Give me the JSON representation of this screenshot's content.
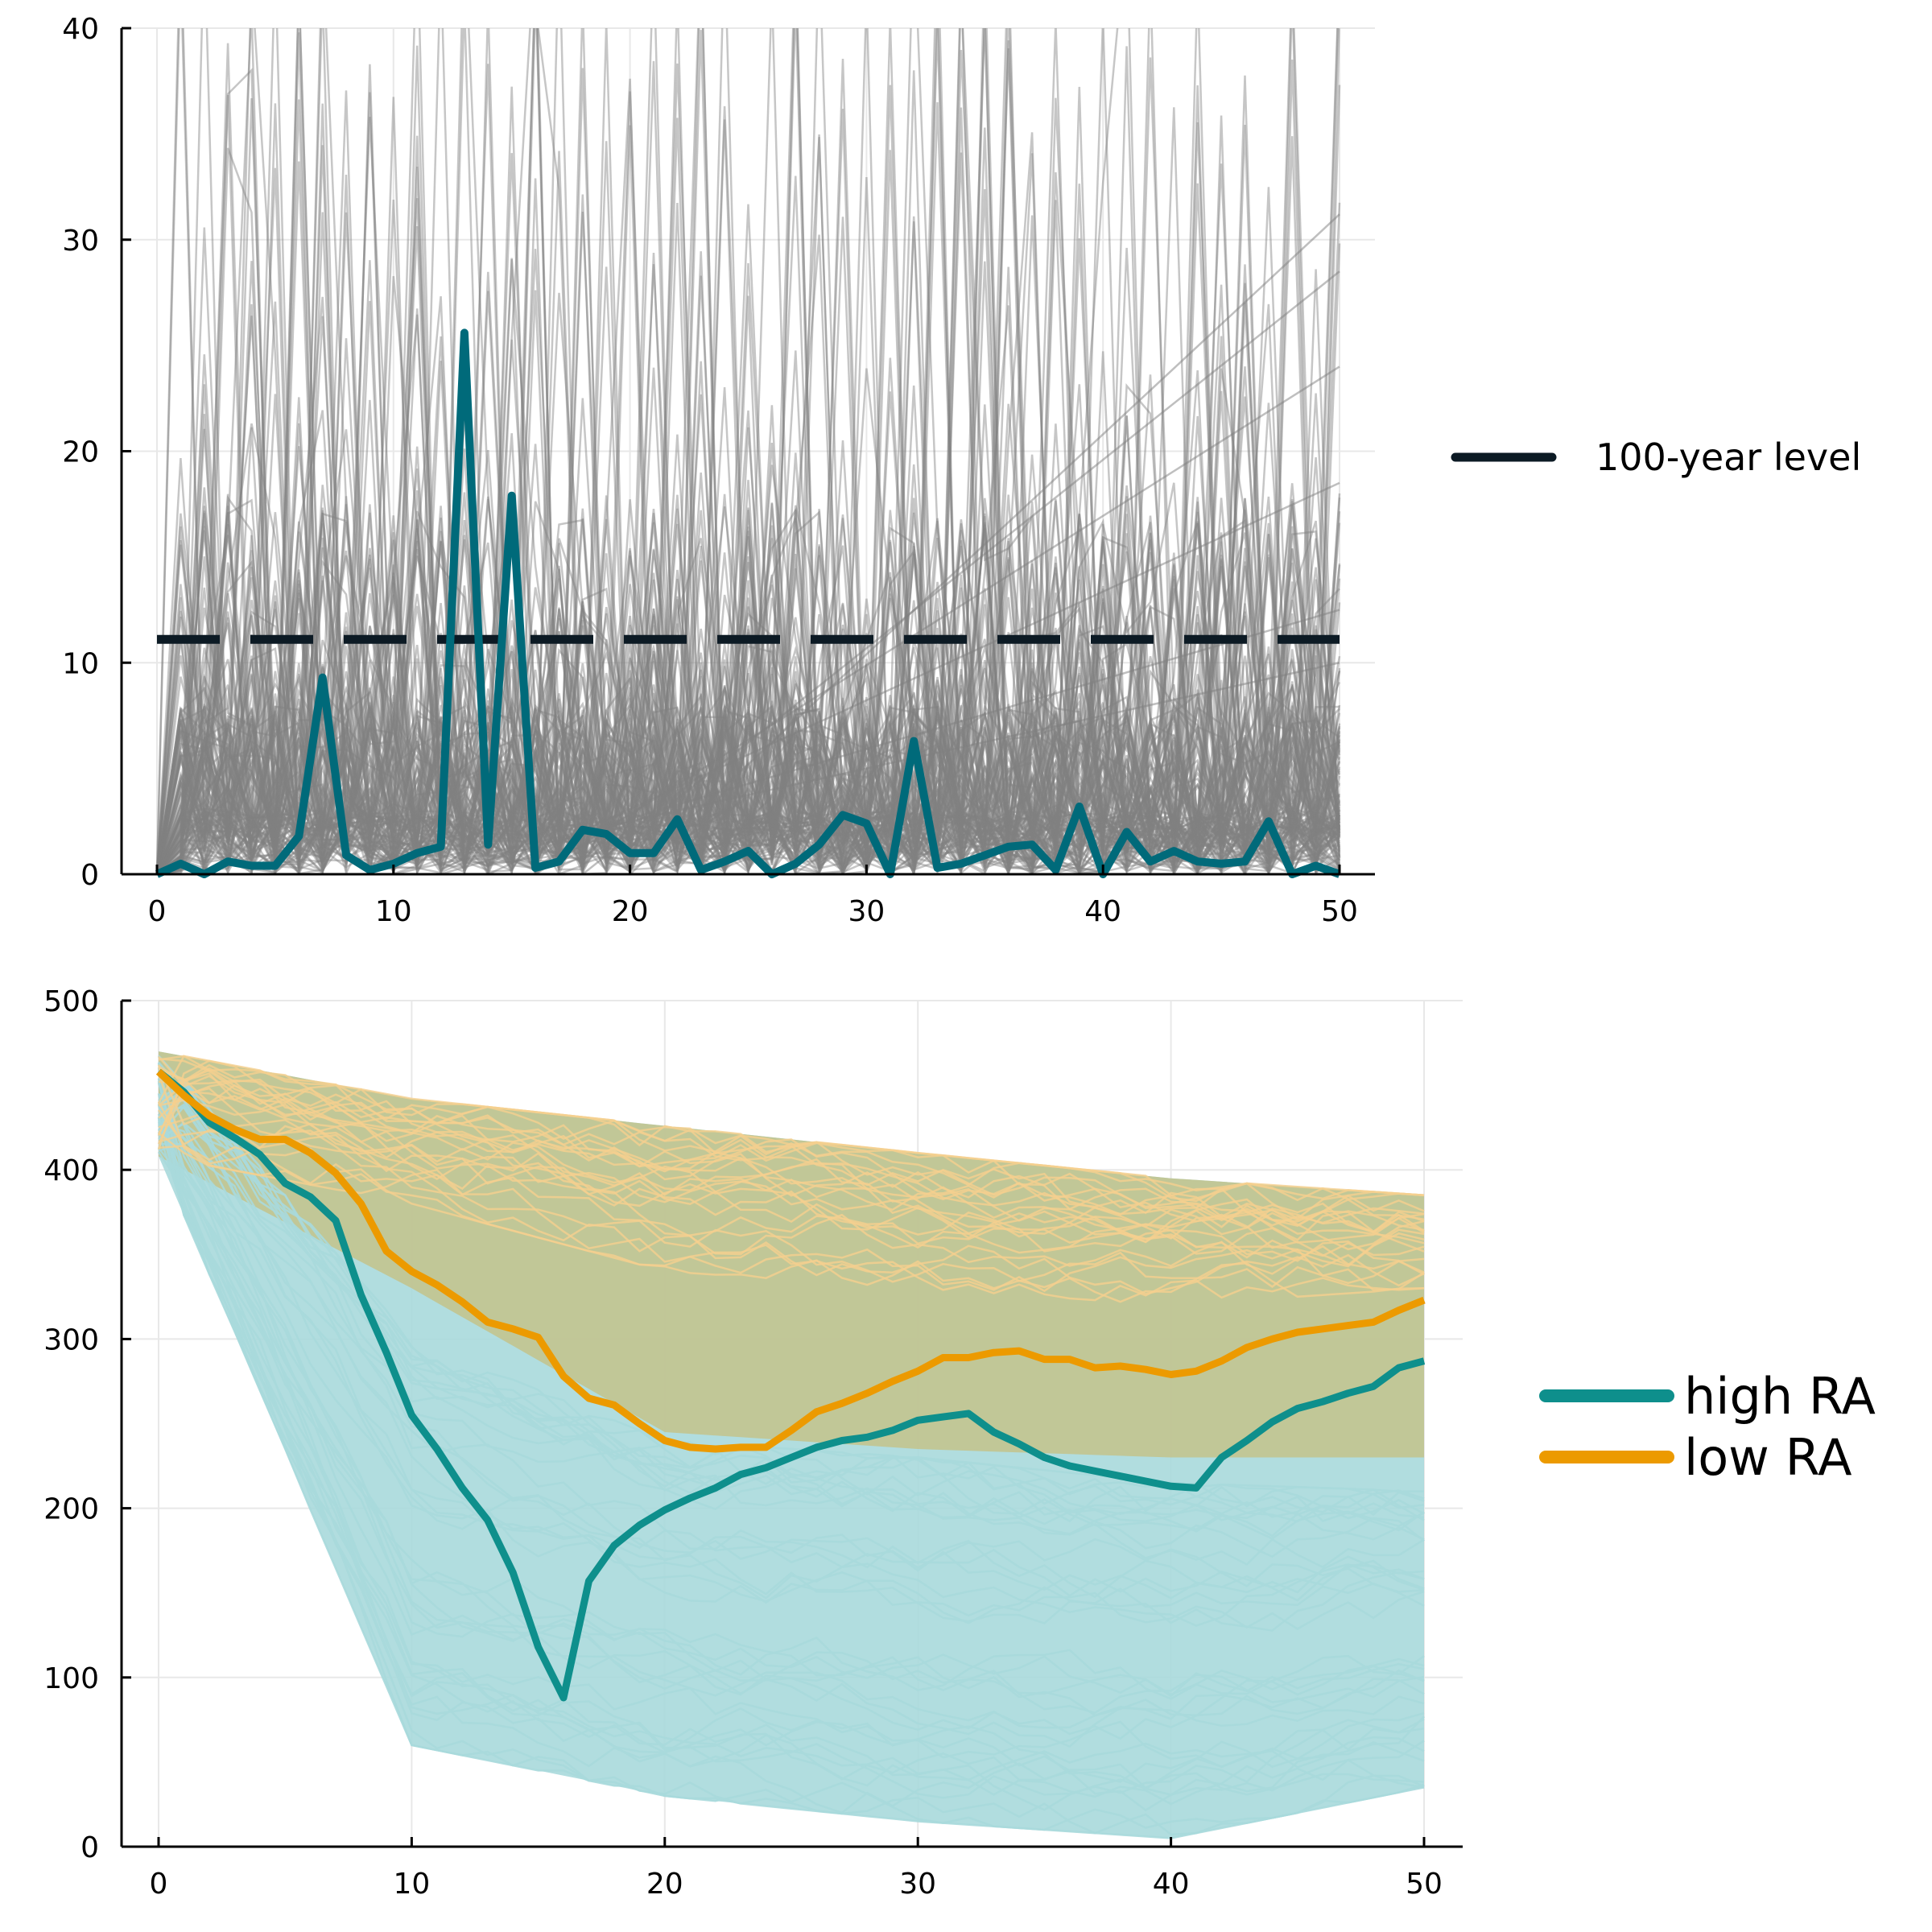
{
  "colors": {
    "background": "#ffffff",
    "grid": "#e8e8e8",
    "axis": "#000000",
    "ensemble_gray": "#808080",
    "highlight_top": "#006a7a",
    "threshold": "#0c1a24",
    "high_ra": "#0e8f8c",
    "high_ra_ensemble": "#a8d9dc",
    "low_ra": "#ec9a00",
    "low_ra_ensemble": "#f5cf8f",
    "overlap_band": "#c2c592"
  },
  "chart_data": [
    {
      "type": "line",
      "xlim": [
        0,
        50
      ],
      "ylim": [
        0,
        40
      ],
      "xticks": [
        0,
        10,
        20,
        30,
        40,
        50
      ],
      "yticks": [
        0,
        10,
        20,
        30,
        40
      ],
      "grid": true,
      "legend_position": "outside right",
      "series": [
        {
          "name": "100-year level",
          "style": "dashed",
          "color": "#0c1a24",
          "x": [
            0,
            50
          ],
          "y": [
            11.1,
            11.1
          ]
        },
        {
          "style": "solid",
          "color": "#006a7a",
          "x": [
            0,
            1,
            2,
            3,
            4,
            5,
            6,
            7,
            8,
            9,
            10,
            11,
            12,
            13,
            14,
            15,
            16,
            17,
            18,
            19,
            20,
            21,
            22,
            23,
            24,
            25,
            26,
            27,
            28,
            29,
            30,
            31,
            32,
            33,
            34,
            35,
            36,
            37,
            38,
            39,
            40,
            41,
            42,
            43,
            44,
            45,
            46,
            47,
            48,
            49,
            50
          ],
          "y": [
            0,
            0.5,
            0,
            0.6,
            0.4,
            0.4,
            1.8,
            9.3,
            0.9,
            0.2,
            0.5,
            1.0,
            1.3,
            25.6,
            1.4,
            17.9,
            0.3,
            0.6,
            2.1,
            1.9,
            1.0,
            1.0,
            2.6,
            0.2,
            0.6,
            1.1,
            0,
            0.5,
            1.4,
            2.8,
            2.4,
            0,
            6.3,
            0.3,
            0.5,
            0.9,
            1.3,
            1.4,
            0.2,
            3.2,
            0,
            2.0,
            0.6,
            1.1,
            0.6,
            0.5,
            0.6,
            2.5,
            0,
            0.4,
            0
          ]
        }
      ],
      "ensemble": {
        "description": "many gray simulated trajectories",
        "color": "#808080"
      }
    },
    {
      "type": "line",
      "xlim": [
        0,
        50
      ],
      "ylim": [
        0,
        500
      ],
      "xticks": [
        0,
        10,
        20,
        30,
        40,
        50
      ],
      "yticks": [
        0,
        100,
        200,
        300,
        400,
        500
      ],
      "grid": true,
      "legend_position": "outside right",
      "series": [
        {
          "name": "high RA",
          "color": "#0e8f8c",
          "x": [
            0,
            1,
            2,
            3,
            4,
            5,
            6,
            7,
            8,
            9,
            10,
            11,
            12,
            13,
            14,
            15,
            16,
            17,
            18,
            19,
            20,
            21,
            22,
            23,
            24,
            25,
            26,
            27,
            28,
            29,
            30,
            31,
            32,
            33,
            34,
            35,
            36,
            37,
            38,
            39,
            40,
            41,
            42,
            43,
            44,
            45,
            46,
            47,
            48,
            49,
            50
          ],
          "y": [
            458,
            446,
            428,
            419,
            409,
            392,
            384,
            370,
            326,
            292,
            255,
            235,
            212,
            193,
            162,
            118,
            88,
            157,
            178,
            190,
            199,
            206,
            212,
            220,
            224,
            230,
            236,
            240,
            242,
            246,
            252,
            254,
            256,
            245,
            238,
            230,
            225,
            222,
            219,
            216,
            213,
            212,
            230,
            240,
            251,
            259,
            263,
            268,
            272,
            283,
            287
          ]
        },
        {
          "name": "low RA",
          "color": "#ec9a00",
          "x": [
            0,
            1,
            2,
            3,
            4,
            5,
            6,
            7,
            8,
            9,
            10,
            11,
            12,
            13,
            14,
            15,
            16,
            17,
            18,
            19,
            20,
            21,
            22,
            23,
            24,
            25,
            26,
            27,
            28,
            29,
            30,
            31,
            32,
            33,
            34,
            35,
            36,
            37,
            38,
            39,
            40,
            41,
            42,
            43,
            44,
            45,
            46,
            47,
            48,
            49,
            50
          ],
          "y": [
            458,
            444,
            432,
            424,
            418,
            418,
            410,
            398,
            380,
            352,
            340,
            332,
            322,
            310,
            306,
            301,
            278,
            265,
            261,
            250,
            240,
            236,
            235,
            236,
            236,
            246,
            257,
            262,
            268,
            275,
            281,
            289,
            289,
            292,
            293,
            288,
            288,
            283,
            284,
            282,
            279,
            281,
            287,
            295,
            300,
            304,
            306,
            308,
            310,
            317,
            323
          ]
        }
      ],
      "bands": [
        {
          "name": "high RA envelope",
          "color": "#a8d9dc",
          "x": [
            0,
            10,
            20,
            30,
            40,
            50
          ],
          "lower": [
            408,
            60,
            30,
            15,
            5,
            35
          ],
          "upper": [
            470,
            442,
            426,
            410,
            395,
            385
          ]
        },
        {
          "name": "low RA envelope",
          "color": "#c2c592",
          "x": [
            0,
            10,
            20,
            30,
            40,
            50
          ],
          "lower": [
            408,
            330,
            245,
            235,
            230,
            230
          ],
          "upper": [
            470,
            442,
            426,
            410,
            395,
            385
          ]
        }
      ]
    }
  ],
  "legends": {
    "top": [
      {
        "label": "100-year level",
        "color": "#0c1a24"
      }
    ],
    "bottom": [
      {
        "label": "high RA",
        "color": "#0e8f8c"
      },
      {
        "label": "low RA",
        "color": "#ec9a00"
      }
    ]
  }
}
